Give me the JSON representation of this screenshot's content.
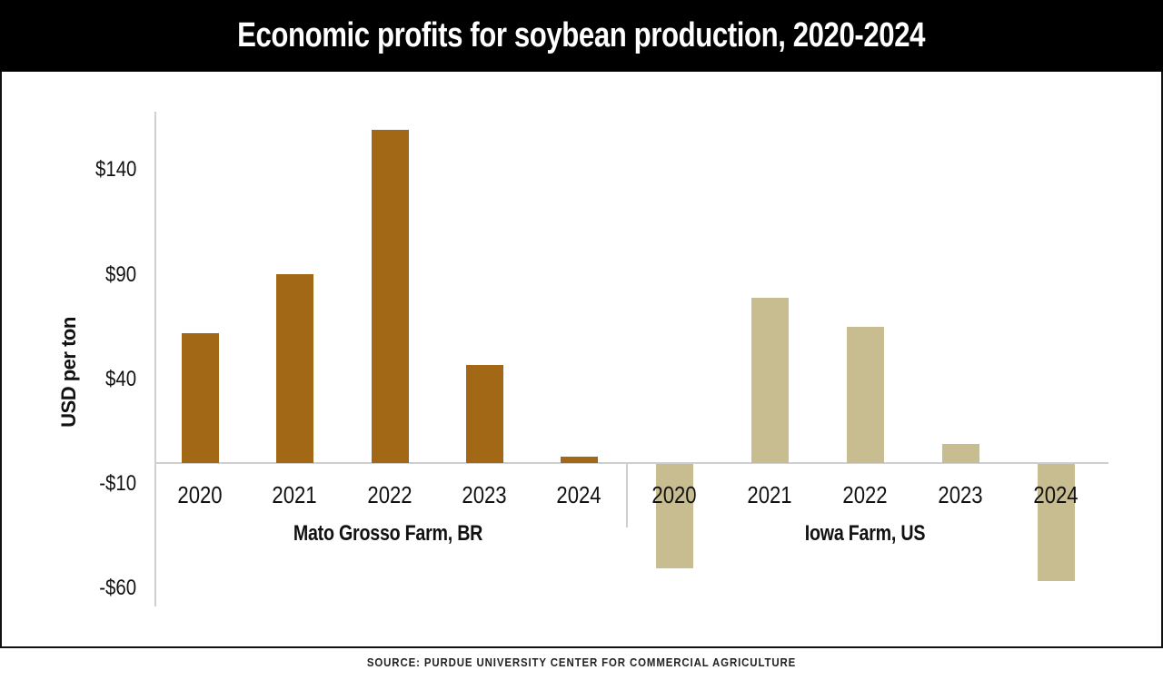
{
  "header": {
    "title": "Economic profits for soybean production, 2020-2024"
  },
  "footer": {
    "source": "SOURCE: PURDUE UNIVERSITY CENTER FOR COMMERCIAL AGRICULTURE"
  },
  "colors": {
    "mato_grosso": "#a36815",
    "iowa": "#c8bc91",
    "header_bg": "#000000",
    "axis": "#cfcfcf"
  },
  "axis": {
    "ylabel": "USD per ton",
    "yticks": [
      "$140",
      "$90",
      "$40",
      "-$10",
      "-$60"
    ]
  },
  "groups": [
    {
      "label": "Mato Grosso Farm, BR",
      "years": [
        "2020",
        "2021",
        "2022",
        "2023",
        "2024"
      ]
    },
    {
      "label": "Iowa Farm, US",
      "years": [
        "2020",
        "2021",
        "2022",
        "2023",
        "2024"
      ]
    }
  ],
  "chart_data": {
    "type": "bar",
    "title": "Economic profits for soybean production, 2020-2024",
    "xlabel": "",
    "ylabel": "USD per ton",
    "ylim": [
      -68,
      168
    ],
    "yticks": [
      140,
      90,
      40,
      -10,
      -60
    ],
    "grid": false,
    "legend": "none (group labels beneath axis)",
    "categories": [
      "2020",
      "2021",
      "2022",
      "2023",
      "2024"
    ],
    "series": [
      {
        "name": "Mato Grosso Farm, BR",
        "color": "#a36815",
        "values": [
          62,
          90,
          159,
          47,
          3
        ]
      },
      {
        "name": "Iowa Farm, US",
        "color": "#c8bc91",
        "values": [
          -50,
          79,
          65,
          9,
          -56
        ]
      }
    ],
    "source": "SOURCE: PURDUE UNIVERSITY CENTER FOR COMMERCIAL AGRICULTURE"
  }
}
